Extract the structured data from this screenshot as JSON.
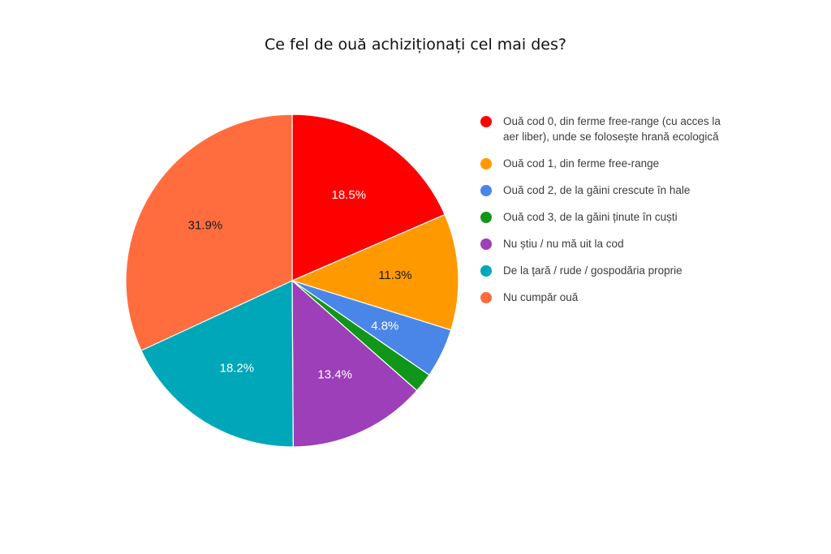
{
  "chart_data": {
    "type": "pie",
    "title": "Ce fel de ouă achiziționați cel mai des?",
    "legend_position": "right",
    "slices": [
      {
        "label": "Ouă cod 0, din ferme free-range (cu acces la aer liber), unde se folosește hrană ecologică",
        "value": 18.5,
        "display": "18.5%",
        "color": "#ff0000",
        "label_color": "#ffffff"
      },
      {
        "label": "Ouă cod 1, din ferme free-range",
        "value": 11.3,
        "display": "11.3%",
        "color": "#ff9900",
        "label_color": "#1a1a1a"
      },
      {
        "label": "Ouă cod 2, de la găini crescute în hale",
        "value": 4.8,
        "display": "4.8%",
        "color": "#4a86e8",
        "label_color": "#ffffff"
      },
      {
        "label": "Ouă cod 3, de la găini ținute în cuști",
        "value": 1.9,
        "display": "",
        "color": "#109618",
        "label_color": "#ffffff"
      },
      {
        "label": "Nu știu / nu mă uit la cod",
        "value": 13.4,
        "display": "13.4%",
        "color": "#9c3fb8",
        "label_color": "#ffffff"
      },
      {
        "label": "De la țară / rude / gospodăria proprie",
        "value": 18.2,
        "display": "18.2%",
        "color": "#00a7b8",
        "label_color": "#ffffff"
      },
      {
        "label": "Nu cumpăr ouă",
        "value": 31.9,
        "display": "31.9%",
        "color": "#ff6d3f",
        "label_color": "#1a1a1a"
      }
    ]
  }
}
